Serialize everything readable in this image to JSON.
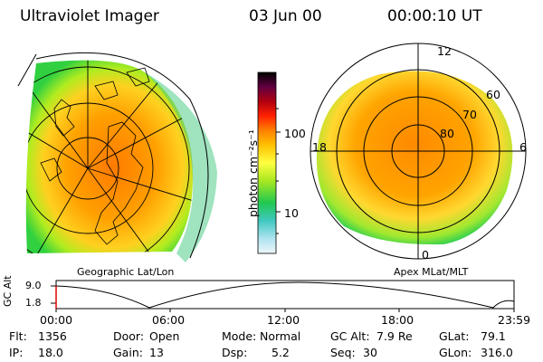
{
  "header": {
    "instrument": "Ultraviolet Imager",
    "date": "03 Jun 00",
    "time": "00:00:10 UT"
  },
  "colorbar": {
    "unit_label": "photon cm⁻²s⁻¹",
    "tick_labels": [
      "100",
      "10"
    ],
    "colors": [
      "#000000",
      "#2a0a3a",
      "#5a0032",
      "#8a0010",
      "#c80000",
      "#ff2000",
      "#ff6a00",
      "#ffa000",
      "#ffd000",
      "#ffff40",
      "#c8f000",
      "#70e000",
      "#20d04a",
      "#30c8b0",
      "#70d8e8",
      "#b0e8f0",
      "#e8f4f8"
    ]
  },
  "left_map": {
    "label": "Geographic Lat/Lon"
  },
  "right_map": {
    "label": "Apex MLat/MLT",
    "mlt_labels": [
      "12",
      "18",
      "6",
      "0"
    ],
    "mlat_labels": [
      "60",
      "70",
      "80"
    ]
  },
  "altitude_plot": {
    "ylabel": "GC Alt",
    "ytick_labels": [
      "9.0",
      "1.8"
    ],
    "xtick_labels": [
      "00:00",
      "06:00",
      "12:00",
      "18:00",
      "23:59"
    ]
  },
  "status": {
    "flt_label": "Flt:",
    "flt_value": "1356",
    "ip_label": "IP:",
    "ip_value": "18.0",
    "door_label": "Door:",
    "door_value": "Open",
    "gain_label": "Gain:",
    "gain_value": "13",
    "mode_label": "Mode:",
    "mode_value": "Normal",
    "dsp_label": "Dsp:",
    "dsp_value": "5.2",
    "gcalt_label": "GC Alt:",
    "gcalt_value": "7.9 Re",
    "seq_label": "Seq:",
    "seq_value": "30",
    "glat_label": "GLat:",
    "glat_value": "79.1",
    "glon_label": "GLon:",
    "glon_value": "316.0"
  }
}
